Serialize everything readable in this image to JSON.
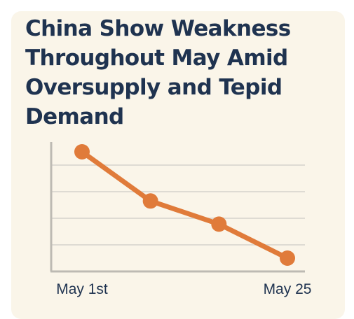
{
  "card": {
    "background": "#faf5e9",
    "title_color": "#1f3350"
  },
  "chart_data": {
    "type": "line",
    "title": "China Show Weakness Throughout May Amid Oversupply and Tepid Demand",
    "xlabel": "",
    "ylabel": "",
    "x_ticks": [
      "May 1st",
      "May 25"
    ],
    "x": [
      0,
      1,
      2,
      3
    ],
    "values": [
      4,
      2.15,
      1.28,
      0
    ],
    "ylim": [
      -0.5,
      4.5
    ],
    "grid": true,
    "line_color": "#e07b3a",
    "axis_color": "#bdbab3",
    "grid_color": "#dedbd3"
  }
}
